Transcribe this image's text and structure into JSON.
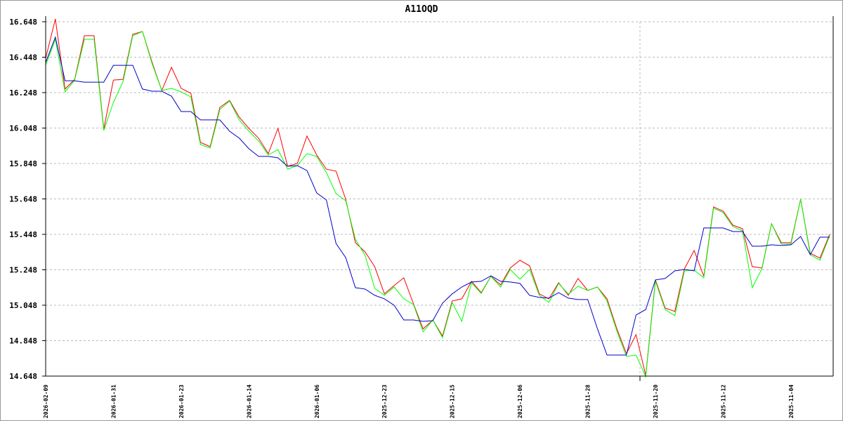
{
  "chart_data": {
    "type": "line",
    "title": "A11OQD",
    "xlabel": "",
    "ylabel": "",
    "ylim": [
      14.648,
      16.648
    ],
    "y_ticks": [
      "16.648",
      "16.448",
      "16.248",
      "16.048",
      "15.848",
      "15.648",
      "15.448",
      "15.248",
      "15.048",
      "14.848",
      "14.648"
    ],
    "x_tick_labels": [
      {
        "index": 0,
        "label": "2026-02-09"
      },
      {
        "index": 7,
        "label": "2026-01-31"
      },
      {
        "index": 14,
        "label": "2026-01-23"
      },
      {
        "index": 21,
        "label": "2026-01-14"
      },
      {
        "index": 28,
        "label": "2026-01-06"
      },
      {
        "index": 35,
        "label": "2025-12-23"
      },
      {
        "index": 42,
        "label": "2025-12-15"
      },
      {
        "index": 49,
        "label": "2025-12-06"
      },
      {
        "index": 56,
        "label": "2025-11-28"
      },
      {
        "index": 63,
        "label": "2025-11-20"
      },
      {
        "index": 70,
        "label": "2025-11-12"
      },
      {
        "index": 77,
        "label": "2025-11-04"
      }
    ],
    "grid": true,
    "series": [
      {
        "color": "#ff0000",
        "values": [
          16.442,
          16.664,
          16.268,
          16.323,
          16.569,
          16.569,
          16.042,
          16.319,
          16.323,
          16.577,
          16.593,
          16.418,
          16.26,
          16.391,
          16.272,
          16.244,
          15.967,
          15.943,
          16.165,
          16.204,
          16.109,
          16.046,
          15.991,
          15.904,
          16.046,
          15.832,
          15.848,
          16.003,
          15.896,
          15.816,
          15.805,
          15.646,
          15.401,
          15.349,
          15.266,
          15.112,
          15.159,
          15.203,
          15.056,
          14.914,
          14.965,
          14.874,
          15.072,
          15.084,
          15.183,
          15.119,
          15.211,
          15.163,
          15.258,
          15.302,
          15.27,
          15.112,
          15.084,
          15.175,
          15.104,
          15.199,
          15.131,
          15.151,
          15.084,
          14.917,
          14.775,
          14.882,
          14.652,
          15.191,
          15.032,
          15.013,
          15.254,
          15.357,
          15.211,
          15.603,
          15.579,
          15.5,
          15.48,
          15.266,
          15.258,
          15.508,
          15.401,
          15.401,
          15.646,
          15.341,
          15.314,
          15.448
        ]
      },
      {
        "color": "#00ff00",
        "values": [
          16.402,
          16.549,
          16.252,
          16.319,
          16.549,
          16.549,
          16.034,
          16.193,
          16.311,
          16.569,
          16.593,
          16.41,
          16.26,
          16.272,
          16.252,
          16.224,
          15.955,
          15.935,
          16.153,
          16.201,
          16.094,
          16.03,
          15.975,
          15.896,
          15.927,
          15.816,
          15.836,
          15.904,
          15.888,
          15.797,
          15.678,
          15.638,
          15.42,
          15.329,
          15.143,
          15.104,
          15.151,
          15.084,
          15.052,
          14.898,
          14.965,
          14.866,
          15.064,
          14.957,
          15.175,
          15.115,
          15.211,
          15.151,
          15.25,
          15.195,
          15.25,
          15.104,
          15.064,
          15.171,
          15.111,
          15.155,
          15.131,
          15.151,
          15.072,
          14.905,
          14.759,
          14.767,
          14.645,
          15.183,
          15.024,
          14.989,
          15.242,
          15.246,
          15.203,
          15.595,
          15.571,
          15.492,
          15.468,
          15.147,
          15.254,
          15.508,
          15.393,
          15.393,
          15.646,
          15.333,
          15.302,
          15.44
        ]
      },
      {
        "color": "#0000cc",
        "values": [
          16.418,
          16.561,
          16.315,
          16.315,
          16.307,
          16.307,
          16.307,
          16.402,
          16.402,
          16.402,
          16.268,
          16.256,
          16.256,
          16.228,
          16.141,
          16.141,
          16.094,
          16.094,
          16.094,
          16.03,
          15.991,
          15.931,
          15.888,
          15.888,
          15.88,
          15.832,
          15.836,
          15.808,
          15.682,
          15.642,
          15.397,
          15.317,
          15.147,
          15.139,
          15.104,
          15.084,
          15.048,
          14.965,
          14.965,
          14.957,
          14.961,
          15.06,
          15.112,
          15.151,
          15.179,
          15.183,
          15.214,
          15.183,
          15.179,
          15.171,
          15.104,
          15.092,
          15.088,
          15.119,
          15.088,
          15.08,
          15.08,
          14.917,
          14.767,
          14.767,
          14.767,
          14.993,
          15.024,
          15.191,
          15.199,
          15.242,
          15.25,
          15.242,
          15.484,
          15.484,
          15.484,
          15.464,
          15.464,
          15.381,
          15.381,
          15.389,
          15.385,
          15.389,
          15.436,
          15.333,
          15.432,
          15.432
        ]
      }
    ]
  }
}
